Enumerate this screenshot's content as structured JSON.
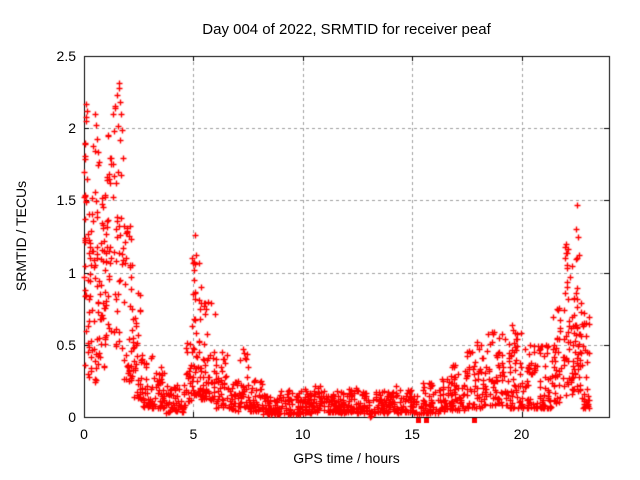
{
  "chart_data": {
    "type": "scatter",
    "title": "Day 004 of 2022, SRMTID for receiver peaf",
    "xlabel": "GPS time / hours",
    "ylabel": "SRMTID / TECUs",
    "xlim": [
      0,
      24
    ],
    "ylim": [
      0,
      2.5
    ],
    "x_ticks": [
      0,
      5,
      10,
      15,
      20
    ],
    "x_tick_labels": [
      "0",
      "5",
      "10",
      "15",
      "20"
    ],
    "y_ticks": [
      0,
      0.5,
      1,
      1.5,
      2,
      2.5
    ],
    "y_tick_labels": [
      "0",
      "0.5",
      "1",
      "1.5",
      "2",
      "2.5"
    ],
    "grid": true,
    "grid_style": "dashed",
    "grid_color": "#a0a0a0",
    "axis_color": "#000000",
    "background_color": "#ffffff",
    "legend": "none",
    "marker": {
      "shape": "plus",
      "color": "#ff0000",
      "size": 7,
      "stroke": 1.4
    },
    "square_marker": {
      "shape": "square",
      "color": "#ff0000",
      "size": 5
    },
    "description": "Dense scatter of SRMTID amplitude vs GPS time; high activity 0-2.3h (max 2.31 TECUs near 1.6h), secondary peaks near 5.1h (1.26), 7.3h (0.47), quiet flat band ~0.03-0.2 from 8h to 15h, gradual rise after 16h with clusters near 18.5-19.5h (0.6) and a spike near 22.5h (max 1.47); data ends ~23.1h",
    "seed": 1337,
    "envelope": [
      {
        "t0": 0.0,
        "t1": 0.15,
        "n": 25,
        "ymin": 0.3,
        "ymax": 2.18,
        "skew": 0.75
      },
      {
        "t0": 0.15,
        "t1": 0.4,
        "n": 32,
        "ymin": 0.25,
        "ymax": 1.62,
        "skew": 0.95
      },
      {
        "t0": 0.4,
        "t1": 0.7,
        "n": 36,
        "ymin": 0.2,
        "ymax": 2.12,
        "skew": 0.95
      },
      {
        "t0": 0.7,
        "t1": 1.0,
        "n": 36,
        "ymin": 0.3,
        "ymax": 1.55,
        "skew": 1.1
      },
      {
        "t0": 1.0,
        "t1": 1.3,
        "n": 30,
        "ymin": 0.4,
        "ymax": 1.95,
        "skew": 1.0
      },
      {
        "t0": 1.3,
        "t1": 1.8,
        "n": 42,
        "ymin": 0.45,
        "ymax": 2.25,
        "skew": 0.9
      },
      {
        "t0": 1.8,
        "t1": 2.2,
        "n": 40,
        "ymin": 0.25,
        "ymax": 1.35,
        "skew": 1.4
      },
      {
        "t0": 2.2,
        "t1": 2.6,
        "n": 36,
        "ymin": 0.12,
        "ymax": 0.95,
        "skew": 1.6
      },
      {
        "t0": 2.6,
        "t1": 3.1,
        "n": 36,
        "ymin": 0.07,
        "ymax": 0.45,
        "skew": 1.6
      },
      {
        "t0": 3.1,
        "t1": 3.7,
        "n": 42,
        "ymin": 0.06,
        "ymax": 0.38,
        "skew": 1.8
      },
      {
        "t0": 3.7,
        "t1": 4.6,
        "n": 55,
        "ymin": 0.03,
        "ymax": 0.22,
        "skew": 1.7
      },
      {
        "t0": 4.6,
        "t1": 4.95,
        "n": 26,
        "ymin": 0.08,
        "ymax": 0.55,
        "skew": 1.4
      },
      {
        "t0": 4.95,
        "t1": 5.35,
        "n": 48,
        "ymin": 0.15,
        "ymax": 1.15,
        "skew": 1.8
      },
      {
        "t0": 5.35,
        "t1": 6.0,
        "n": 58,
        "ymin": 0.12,
        "ymax": 0.8,
        "skew": 1.9
      },
      {
        "t0": 6.0,
        "t1": 6.6,
        "n": 42,
        "ymin": 0.06,
        "ymax": 0.45,
        "skew": 1.8
      },
      {
        "t0": 6.6,
        "t1": 7.05,
        "n": 30,
        "ymin": 0.04,
        "ymax": 0.25,
        "skew": 1.6
      },
      {
        "t0": 7.05,
        "t1": 7.55,
        "n": 36,
        "ymin": 0.07,
        "ymax": 0.45,
        "skew": 1.7
      },
      {
        "t0": 7.55,
        "t1": 8.2,
        "n": 46,
        "ymin": 0.04,
        "ymax": 0.26,
        "skew": 1.8
      },
      {
        "t0": 8.2,
        "t1": 9.2,
        "n": 70,
        "ymin": 0.02,
        "ymax": 0.16,
        "skew": 1.5
      },
      {
        "t0": 9.2,
        "t1": 10.0,
        "n": 60,
        "ymin": 0.02,
        "ymax": 0.19,
        "skew": 1.5
      },
      {
        "t0": 10.0,
        "t1": 11.0,
        "n": 78,
        "ymin": 0.03,
        "ymax": 0.22,
        "skew": 1.6
      },
      {
        "t0": 11.0,
        "t1": 12.0,
        "n": 78,
        "ymin": 0.03,
        "ymax": 0.18,
        "skew": 1.5
      },
      {
        "t0": 12.0,
        "t1": 13.0,
        "n": 76,
        "ymin": 0.03,
        "ymax": 0.2,
        "skew": 1.5
      },
      {
        "t0": 13.0,
        "t1": 13.15,
        "n": 6,
        "ymin": 0.0,
        "ymax": 0.12,
        "skew": 1.2
      },
      {
        "t0": 13.15,
        "t1": 14.2,
        "n": 72,
        "ymin": 0.03,
        "ymax": 0.18,
        "skew": 1.5
      },
      {
        "t0": 14.2,
        "t1": 15.1,
        "n": 56,
        "ymin": 0.03,
        "ymax": 0.22,
        "skew": 1.6
      },
      {
        "t0": 15.1,
        "t1": 15.45,
        "n": 12,
        "ymin": 0.02,
        "ymax": 0.15,
        "skew": 1.4
      },
      {
        "t0": 15.45,
        "t1": 16.2,
        "n": 52,
        "ymin": 0.03,
        "ymax": 0.28,
        "skew": 1.8
      },
      {
        "t0": 16.2,
        "t1": 16.8,
        "n": 46,
        "ymin": 0.04,
        "ymax": 0.3,
        "skew": 1.7
      },
      {
        "t0": 16.8,
        "t1": 17.4,
        "n": 46,
        "ymin": 0.05,
        "ymax": 0.38,
        "skew": 1.7
      },
      {
        "t0": 17.4,
        "t1": 18.3,
        "n": 56,
        "ymin": 0.06,
        "ymax": 0.5,
        "skew": 1.8
      },
      {
        "t0": 18.3,
        "t1": 19.4,
        "n": 72,
        "ymin": 0.08,
        "ymax": 0.6,
        "skew": 1.7
      },
      {
        "t0": 19.4,
        "t1": 20.1,
        "n": 56,
        "ymin": 0.06,
        "ymax": 0.62,
        "skew": 1.7
      },
      {
        "t0": 20.1,
        "t1": 21.4,
        "n": 92,
        "ymin": 0.06,
        "ymax": 0.5,
        "skew": 1.8
      },
      {
        "t0": 21.4,
        "t1": 21.9,
        "n": 40,
        "ymin": 0.1,
        "ymax": 0.9,
        "skew": 1.6
      },
      {
        "t0": 21.9,
        "t1": 22.35,
        "n": 46,
        "ymin": 0.15,
        "ymax": 1.2,
        "skew": 1.4
      },
      {
        "t0": 22.35,
        "t1": 22.7,
        "n": 46,
        "ymin": 0.18,
        "ymax": 1.1,
        "skew": 1.5
      },
      {
        "t0": 22.7,
        "t1": 23.1,
        "n": 36,
        "ymin": 0.06,
        "ymax": 0.75,
        "skew": 1.5
      }
    ],
    "outliers": [
      [
        0.07,
        2.17
      ],
      [
        0.1,
        2.05
      ],
      [
        0.48,
        2.1
      ],
      [
        0.55,
        2.02
      ],
      [
        1.58,
        2.28
      ],
      [
        1.62,
        2.31
      ],
      [
        1.65,
        2.18
      ],
      [
        1.7,
        2.1
      ],
      [
        2.1,
        1.32
      ],
      [
        5.08,
        1.26
      ],
      [
        5.1,
        1.12
      ],
      [
        5.05,
        1.02
      ],
      [
        7.28,
        0.47
      ],
      [
        7.33,
        0.44
      ],
      [
        9.0,
        0.18
      ],
      [
        13.07,
        0.0
      ],
      [
        13.12,
        0.01
      ],
      [
        17.95,
        0.52
      ],
      [
        18.15,
        0.5
      ],
      [
        19.55,
        0.64
      ],
      [
        19.6,
        0.6
      ],
      [
        22.0,
        1.18
      ],
      [
        22.1,
        1.05
      ],
      [
        22.48,
        1.3
      ],
      [
        22.55,
        1.47
      ],
      [
        22.6,
        1.25
      ],
      [
        22.62,
        1.12
      ],
      [
        22.85,
        0.72
      ],
      [
        23.0,
        0.45
      ]
    ],
    "axis_squares_t": [
      15.28,
      15.62,
      17.85
    ]
  }
}
